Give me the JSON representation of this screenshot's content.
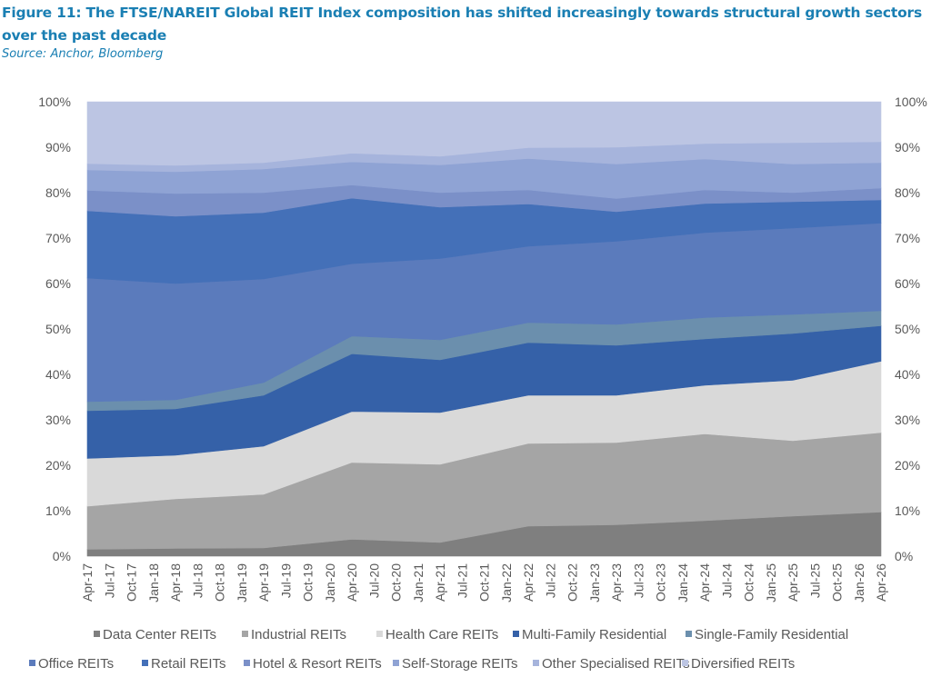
{
  "figure": {
    "title": "Figure 11: The FTSE/NAREIT Global REIT Index composition has shifted increasingly towards structural growth sectors over the past decade",
    "source": "Source: Anchor, Bloomberg"
  },
  "chart_data": {
    "type": "area",
    "stacked": true,
    "normalized_percent": true,
    "title": "The FTSE/NAREIT Global REIT Index composition has shifted increasingly towards structural growth sectors over the past decade",
    "xlabel": "",
    "ylabel": "",
    "ylim": [
      0,
      100
    ],
    "y_ticks": [
      "0%",
      "10%",
      "20%",
      "30%",
      "40%",
      "50%",
      "60%",
      "70%",
      "80%",
      "90%",
      "100%"
    ],
    "y_axis_sides": [
      "left",
      "right"
    ],
    "grid": false,
    "legend_position": "bottom",
    "x": [
      "Apr-17",
      "Apr-18",
      "Apr-19",
      "Apr-20",
      "Apr-21",
      "Apr-22",
      "Apr-23",
      "Apr-24",
      "Apr-25",
      "Apr-26"
    ],
    "x_tick_labels": [
      "Apr-17",
      "Jul-17",
      "Oct-17",
      "Jan-18",
      "Apr-18",
      "Jul-18",
      "Oct-18",
      "Jan-19",
      "Apr-19",
      "Jul-19",
      "Oct-19",
      "Jan-20",
      "Apr-20",
      "Jul-20",
      "Oct-20",
      "Jan-21",
      "Apr-21",
      "Jul-21",
      "Oct-21",
      "Jan-22",
      "Apr-22",
      "Jul-22",
      "Oct-22",
      "Jan-23",
      "Apr-23",
      "Jul-23",
      "Oct-23",
      "Jan-24",
      "Apr-24",
      "Jul-24",
      "Oct-24",
      "Jan-25",
      "Apr-25",
      "Jul-25",
      "Oct-25",
      "Jan-26",
      "Apr-26"
    ],
    "series": [
      {
        "name": "Data Center REITs",
        "color": "#7f7f7f",
        "values": [
          1.5,
          1.7,
          1.8,
          3.7,
          3.0,
          6.6,
          6.9,
          7.8,
          8.8,
          9.7
        ]
      },
      {
        "name": "Industrial REITs",
        "color": "#a5a5a5",
        "values": [
          9.5,
          10.9,
          11.8,
          16.9,
          17.2,
          18.2,
          18.1,
          19.1,
          16.6,
          17.5
        ]
      },
      {
        "name": "Health Care REITs",
        "color": "#d9d9d9",
        "values": [
          10.5,
          9.6,
          10.6,
          11.2,
          11.4,
          10.6,
          10.4,
          10.7,
          13.3,
          15.7
        ]
      },
      {
        "name": "Multi-Family Residential",
        "color": "#3561a8",
        "values": [
          10.5,
          10.2,
          11.2,
          12.7,
          11.6,
          11.6,
          11.0,
          10.2,
          10.3,
          7.8
        ]
      },
      {
        "name": "Single-Family Residential",
        "color": "#6b8fad",
        "values": [
          2.0,
          2.0,
          2.8,
          3.9,
          4.4,
          4.4,
          4.6,
          4.7,
          4.2,
          3.3
        ]
      },
      {
        "name": "Office REITs",
        "color": "#5b7bbc",
        "values": [
          27.2,
          25.6,
          22.8,
          15.9,
          17.9,
          16.8,
          18.3,
          18.7,
          19.0,
          19.3
        ]
      },
      {
        "name": "Retail REITs",
        "color": "#4470b8",
        "values": [
          14.8,
          14.8,
          14.6,
          14.4,
          11.3,
          9.3,
          6.5,
          6.4,
          5.8,
          5.1
        ]
      },
      {
        "name": "Hotel & Resort REITs",
        "color": "#7b90c8",
        "values": [
          4.5,
          5.0,
          4.4,
          2.9,
          3.2,
          3.1,
          2.9,
          3.0,
          2.0,
          2.6
        ]
      },
      {
        "name": "Self-Storage REITs",
        "color": "#8fa3d4",
        "values": [
          4.5,
          4.8,
          5.2,
          5.1,
          6.1,
          6.9,
          7.6,
          6.8,
          6.3,
          5.6
        ]
      },
      {
        "name": "Other Specialised REITs",
        "color": "#a6b4dc",
        "values": [
          1.4,
          1.4,
          1.4,
          1.9,
          1.9,
          2.4,
          3.7,
          3.4,
          4.7,
          4.6
        ]
      },
      {
        "name": "Diversified REITs",
        "color": "#bcc5e3",
        "values": [
          13.6,
          14.0,
          13.4,
          11.3,
          12.0,
          10.1,
          10.0,
          9.2,
          9.0,
          8.8
        ]
      }
    ]
  },
  "legend": {
    "rows": [
      [
        "Data Center REITs",
        "Industrial REITs",
        "Health Care REITs",
        "Multi-Family Residential",
        "Single-Family Residential"
      ],
      [
        "Office REITs",
        "Retail REITs",
        "Hotel & Resort REITs",
        "Self-Storage REITs",
        "Other Specialised REITs",
        "Diversified REITs"
      ]
    ],
    "marker_colors": {
      "Data Center REITs": "#7f7f7f",
      "Industrial REITs": "#a5a5a5",
      "Health Care REITs": "#d9d9d9",
      "Multi-Family Residential": "#3561a8",
      "Single-Family Residential": "#6b8fad",
      "Office REITs": "#5b7bbc",
      "Retail REITs": "#4470b8",
      "Hotel & Resort REITs": "#7b90c8",
      "Self-Storage REITs": "#8fa3d4",
      "Other Specialised REITs": "#a6b4dc",
      "Diversified REITs": "#bcc5e3"
    }
  }
}
